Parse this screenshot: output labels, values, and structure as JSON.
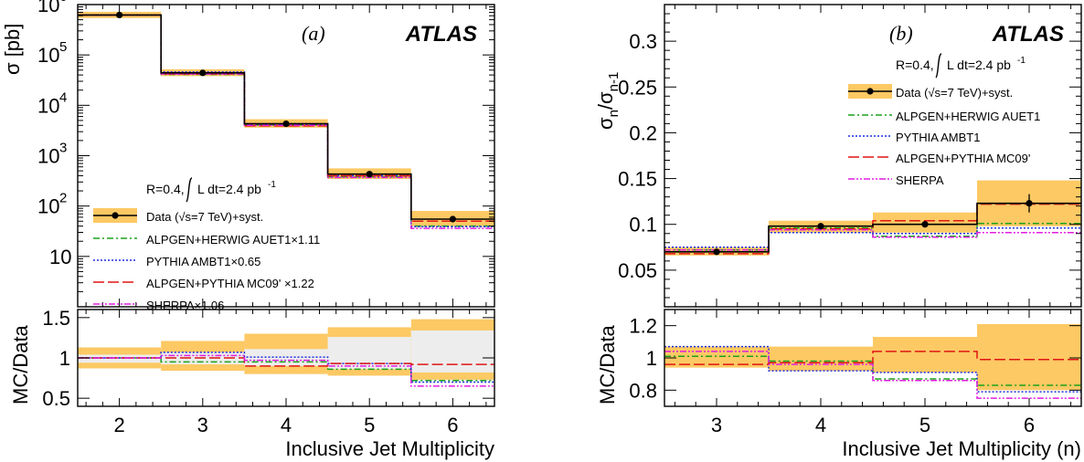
{
  "colors": {
    "band": "#fdc964",
    "ratio_inner_band": "#ededed",
    "data": "#000000",
    "alpgen_herwig": "#1aa31a",
    "pythia": "#1f2fe0",
    "alpgen_pythia": "#e01515",
    "sherpa": "#e01ee0"
  },
  "chart_data": [
    {
      "id": "a",
      "type": "line",
      "panel_tag": "(a)",
      "experiment": "ATLAS",
      "xlabel": "Inclusive Jet Multiplicity",
      "ylabel": "σ [pb]",
      "ratio_ylabel": "MC/Data",
      "x_range": [
        1.5,
        6.5
      ],
      "ylim": [
        1,
        1000000
      ],
      "log_y": true,
      "ratio_ylim": [
        0.4,
        1.6
      ],
      "x_ticks": [
        "2",
        "3",
        "4",
        "5",
        "6"
      ],
      "y_ticks": [
        {
          "v": 10,
          "base": "10",
          "exp": ""
        },
        {
          "v": 100,
          "base": "10",
          "exp": "2"
        },
        {
          "v": 1000,
          "base": "10",
          "exp": "3"
        },
        {
          "v": 10000,
          "base": "10",
          "exp": "4"
        },
        {
          "v": 100000,
          "base": "10",
          "exp": "5"
        },
        {
          "v": 1000000,
          "base": "10",
          "exp": "6"
        }
      ],
      "ratio_y_ticks": [
        0.5,
        1,
        1.5
      ],
      "ratio_y_tick_labels": [
        "0.5",
        "1",
        "1.5"
      ],
      "x": [
        2,
        3,
        4,
        5,
        6
      ],
      "data": {
        "values": [
          620000,
          44000,
          4300,
          430,
          55
        ],
        "syst_low": [
          540000,
          38000,
          3600,
          345,
          40
        ],
        "syst_high": [
          720000,
          52000,
          5300,
          560,
          80
        ]
      },
      "series": [
        {
          "name": "ALPGEN+HERWIG AUET1×1.11",
          "style": "dashdot",
          "color_key": "alpgen_herwig",
          "values": [
            620000,
            41000,
            4100,
            380,
            40
          ]
        },
        {
          "name": "PYTHIA AMBT1×0.65",
          "style": "dotted",
          "color_key": "pythia",
          "values": [
            620000,
            46000,
            4300,
            400,
            39
          ]
        },
        {
          "name": "ALPGEN+PYTHIA MC09' ×1.22",
          "style": "dashed",
          "color_key": "alpgen_pythia",
          "values": [
            620000,
            42000,
            3900,
            400,
            50
          ]
        },
        {
          "name": "SHERPA×1.06",
          "style": "dashdotdot",
          "color_key": "sherpa",
          "values": [
            620000,
            42000,
            4000,
            370,
            36
          ]
        }
      ],
      "ratio": {
        "band_low": [
          0.87,
          0.84,
          0.8,
          0.78,
          0.73
        ],
        "band_high": [
          1.13,
          1.21,
          1.3,
          1.38,
          1.48
        ],
        "inner_low": [
          0.94,
          0.92,
          0.9,
          0.86,
          0.82
        ],
        "inner_high": [
          1.04,
          1.07,
          1.11,
          1.26,
          1.34
        ],
        "series": [
          {
            "color_key": "alpgen_herwig",
            "style": "dashdot",
            "values": [
              1,
              0.95,
              0.95,
              0.86,
              0.72
            ]
          },
          {
            "color_key": "pythia",
            "style": "dotted",
            "values": [
              1,
              1.07,
              1.01,
              0.93,
              0.7
            ]
          },
          {
            "color_key": "alpgen_pythia",
            "style": "dashed",
            "values": [
              1,
              1.0,
              0.9,
              0.93,
              0.92
            ]
          },
          {
            "color_key": "sherpa",
            "style": "dashdotdot",
            "values": [
              1,
              1.03,
              0.97,
              0.9,
              0.65
            ]
          }
        ]
      },
      "legend": {
        "header_left": "R=0.4,",
        "header_right": "L dt=2.4 pb",
        "header_sup": "-1",
        "data_label": "Data (√s=7 TeV)+syst.",
        "entries": [
          "ALPGEN+HERWIG AUET1×1.11",
          "PYTHIA AMBT1×0.65",
          "ALPGEN+PYTHIA MC09' ×1.22",
          "SHERPA×1.06"
        ]
      }
    },
    {
      "id": "b",
      "type": "line",
      "panel_tag": "(b)",
      "experiment": "ATLAS",
      "xlabel": "Inclusive Jet Multiplicity (n)",
      "ylabel": "σ",
      "ylabel_sub1": "n",
      "ylabel_slash": "/σ",
      "ylabel_sub2": "n-1",
      "ratio_ylabel": "MC/Data",
      "x_range": [
        2.5,
        6.5
      ],
      "ylim": [
        0.01,
        0.34
      ],
      "log_y": false,
      "ratio_ylim": [
        0.7,
        1.3
      ],
      "x_ticks": [
        "3",
        "4",
        "5",
        "6"
      ],
      "y_ticks": [
        0.05,
        0.1,
        0.15,
        0.2,
        0.25,
        0.3
      ],
      "y_tick_labels": [
        "0.05",
        "0.1",
        "0.15",
        "0.2",
        "0.25",
        "0.3"
      ],
      "ratio_y_ticks": [
        0.8,
        1,
        1.2
      ],
      "ratio_y_tick_labels": [
        "0.8",
        "1",
        "1.2"
      ],
      "x": [
        3,
        4,
        5,
        6
      ],
      "data": {
        "values": [
          0.07,
          0.098,
          0.1,
          0.123
        ],
        "stat_low": [
          0.068,
          0.096,
          0.097,
          0.113
        ],
        "stat_high": [
          0.072,
          0.1,
          0.103,
          0.133
        ],
        "syst_low": [
          0.066,
          0.091,
          0.091,
          0.098
        ],
        "syst_high": [
          0.075,
          0.104,
          0.113,
          0.148
        ]
      },
      "series": [
        {
          "name": "ALPGEN+HERWIG AUET1",
          "style": "dashdot",
          "color_key": "alpgen_herwig",
          "values": [
            0.072,
            0.096,
            0.087,
            0.101
          ]
        },
        {
          "name": "PYTHIA AMBT1",
          "style": "dotted",
          "color_key": "pythia",
          "values": [
            0.075,
            0.091,
            0.09,
            0.096
          ]
        },
        {
          "name": "ALPGEN+PYTHIA MC09'",
          "style": "dashed",
          "color_key": "alpgen_pythia",
          "values": [
            0.068,
            0.095,
            0.104,
            0.122
          ]
        },
        {
          "name": "SHERPA",
          "style": "dashdotdot",
          "color_key": "sherpa",
          "values": [
            0.072,
            0.094,
            0.086,
            0.091
          ]
        }
      ],
      "ratio": {
        "band_low": [
          0.94,
          0.92,
          0.91,
          0.8
        ],
        "band_high": [
          1.07,
          1.07,
          1.13,
          1.21
        ],
        "series": [
          {
            "color_key": "alpgen_herwig",
            "style": "dashdot",
            "values": [
              1.01,
              0.98,
              0.87,
              0.83
            ]
          },
          {
            "color_key": "pythia",
            "style": "dotted",
            "values": [
              1.07,
              0.92,
              0.91,
              0.79
            ]
          },
          {
            "color_key": "alpgen_pythia",
            "style": "dashed",
            "values": [
              0.96,
              0.97,
              1.04,
              0.99
            ]
          },
          {
            "color_key": "sherpa",
            "style": "dashdotdot",
            "values": [
              1.04,
              0.96,
              0.86,
              0.75
            ]
          }
        ]
      },
      "legend": {
        "header_left": "R=0.4,",
        "header_right": "L dt=2.4 pb",
        "header_sup": "-1",
        "data_label": "Data (√s=7 TeV)+syst.",
        "entries": [
          "ALPGEN+HERWIG AUET1",
          "PYTHIA AMBT1",
          "ALPGEN+PYTHIA MC09'",
          "SHERPA"
        ]
      }
    }
  ]
}
